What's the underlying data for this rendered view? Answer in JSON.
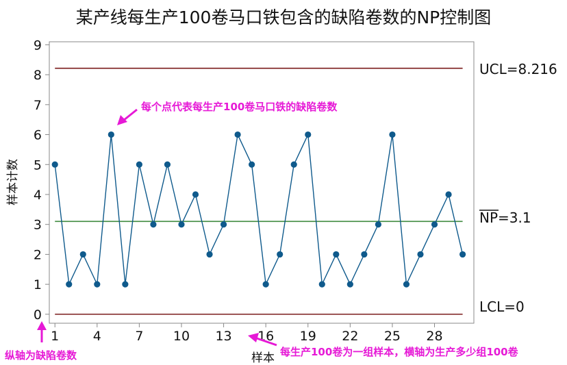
{
  "chart_data": {
    "type": "line",
    "title": "某产线每生产100卷马口铁包含的缺陷卷数的NP控制图",
    "xlabel": "样本",
    "ylabel": "样本计数",
    "x": [
      1,
      2,
      3,
      4,
      5,
      6,
      7,
      8,
      9,
      10,
      11,
      12,
      13,
      14,
      15,
      16,
      17,
      18,
      19,
      20,
      21,
      22,
      23,
      24,
      25,
      26,
      27,
      28,
      29,
      30
    ],
    "values": [
      5,
      1,
      2,
      1,
      6,
      1,
      5,
      3,
      5,
      3,
      4,
      2,
      3,
      6,
      5,
      1,
      2,
      5,
      6,
      1,
      2,
      1,
      2,
      3,
      6,
      1,
      2,
      3,
      4,
      2
    ],
    "x_ticks": [
      1,
      4,
      7,
      10,
      13,
      16,
      19,
      22,
      25,
      28
    ],
    "y_ticks": [
      0,
      1,
      2,
      3,
      4,
      5,
      6,
      7,
      8,
      9
    ],
    "xlim": [
      0.6,
      30.8
    ],
    "ylim": [
      -0.3,
      9.1
    ],
    "ucl": {
      "value": 8.216,
      "label": "UCL=8.216"
    },
    "center": {
      "value": 3.1,
      "label_bar": "NP",
      "label_rest": "=3.1"
    },
    "lcl": {
      "value": 0,
      "label": "LCL=0"
    },
    "grid": false,
    "colors": {
      "series": "#0f5a8c",
      "marker": "#0f5a8c",
      "limit": "#7a1b1b",
      "center": "#3f8a3f",
      "annotation": "#e619d6",
      "axis": "#888888"
    },
    "annotations": {
      "point": "每个点代表每生产100卷马口铁的缺陷卷数",
      "y_axis": "纵轴为缺陷卷数",
      "x_axis": "每生产100卷为一组样本，横轴为生产多少组100卷"
    }
  }
}
